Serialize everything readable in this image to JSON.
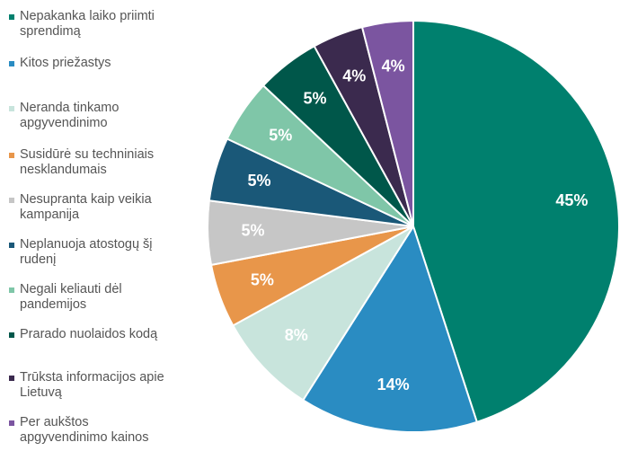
{
  "chart_data": {
    "type": "pie",
    "categories": [
      "Nepakanka laiko priimti sprendimą",
      "Kitos priežastys",
      "Neranda tinkamo apgyvendinimo",
      "Susidūrė su techniniais nesklandumais",
      "Nesupranta kaip veikia kampanija",
      "Neplanuoja atostogų šį rudenį",
      "Negali keliauti dėl pandemijos",
      "Prarado nuolaidos kodą",
      "Trūksta informacijos apie Lietuvą",
      "Per aukštos apgyvendinimo kainos"
    ],
    "values": [
      45,
      14,
      8,
      5,
      5,
      5,
      5,
      5,
      4,
      4
    ],
    "value_labels": [
      "45%",
      "14%",
      "8%",
      "5%",
      "5%",
      "5%",
      "5%",
      "5%",
      "4%",
      "4%"
    ],
    "colors": [
      "#00806e",
      "#2a8cc2",
      "#c8e4dc",
      "#e8964a",
      "#c6c6c6",
      "#1a5878",
      "#7fc6a8",
      "#00574a",
      "#3b2a4e",
      "#7b55a0"
    ],
    "legend": "left"
  }
}
